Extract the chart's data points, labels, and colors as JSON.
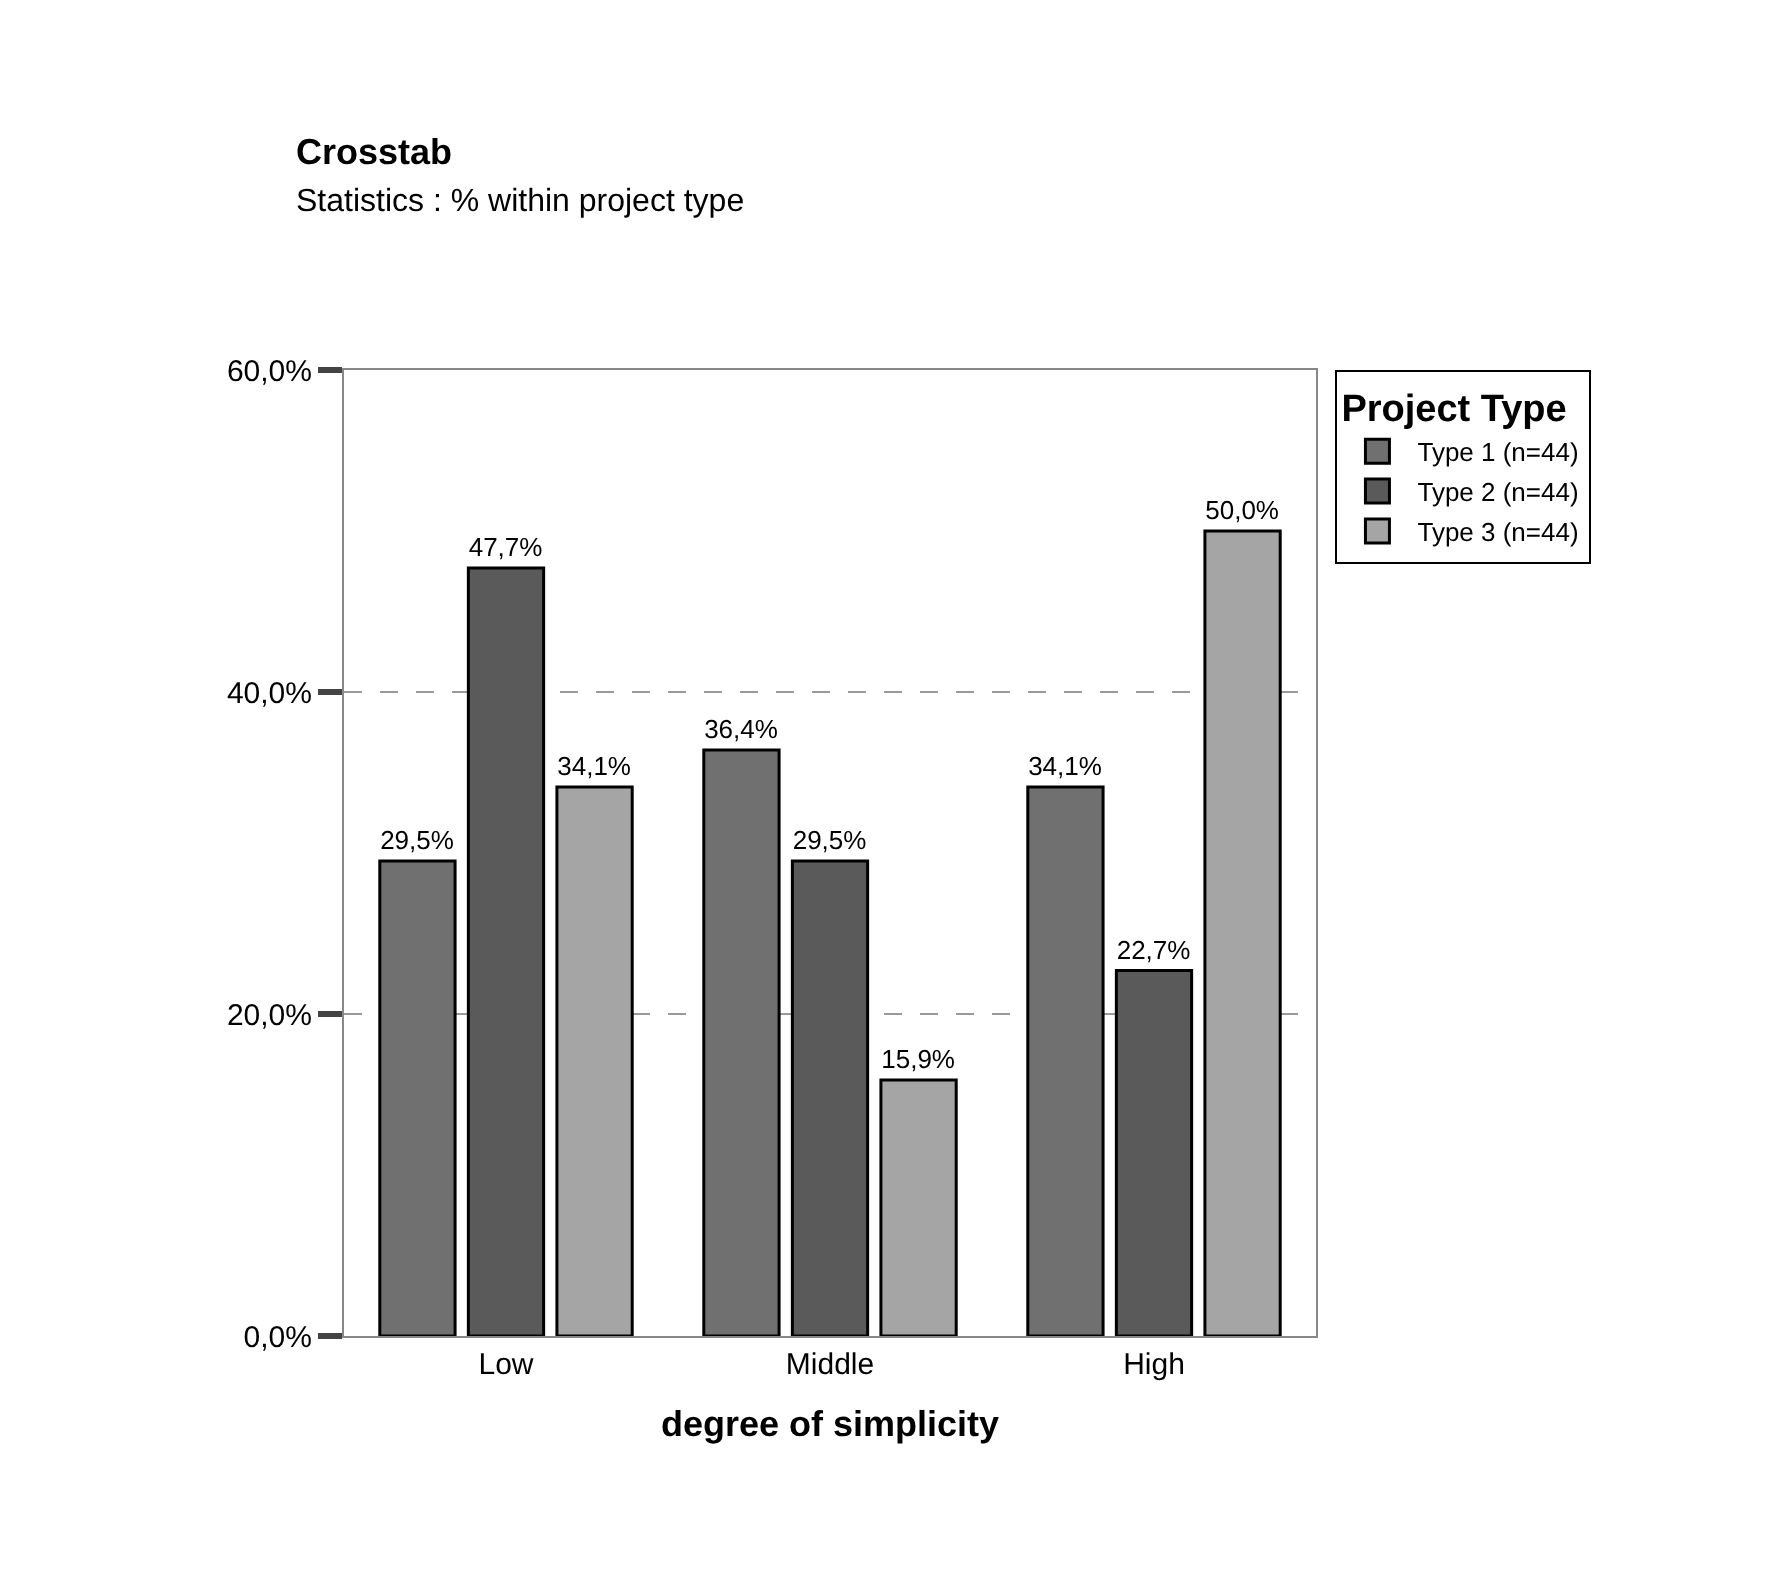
{
  "chart_data": {
    "type": "bar",
    "title": "Crosstab",
    "subtitle": "Statistics : % within project type",
    "xlabel": "degree of simplicity",
    "legend_title": "Project Type",
    "categories": [
      "Low",
      "Middle",
      "High"
    ],
    "series": [
      {
        "name": "Type 1 (n=44)",
        "color": "#707070",
        "values": [
          29.5,
          36.4,
          34.1
        ],
        "value_labels": [
          "29,5%",
          "36,4%",
          "34,1%"
        ]
      },
      {
        "name": "Type 2 (n=44)",
        "color": "#5a5a5a",
        "values": [
          47.7,
          29.5,
          22.7
        ],
        "value_labels": [
          "47,7%",
          "29,5%",
          "22,7%"
        ]
      },
      {
        "name": "Type 3 (n=44)",
        "color": "#a5a5a5",
        "values": [
          34.1,
          15.9,
          50.0
        ],
        "value_labels": [
          "34,1%",
          "15,9%",
          "50,0%"
        ]
      }
    ],
    "ylim": [
      0,
      60
    ],
    "yticks": [
      {
        "value": 0,
        "label": "0,0%"
      },
      {
        "value": 20,
        "label": "20,0%"
      },
      {
        "value": 40,
        "label": "40,0%"
      },
      {
        "value": 60,
        "label": "60,0%"
      }
    ],
    "grid": "y",
    "legend": "top right"
  }
}
